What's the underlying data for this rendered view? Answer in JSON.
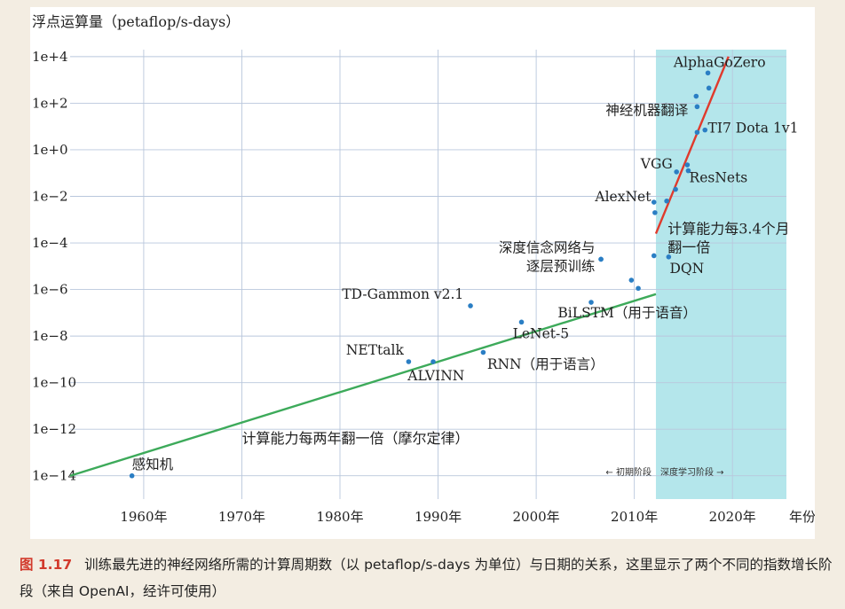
{
  "chart_data": {
    "type": "scatter",
    "ylabel": "浮点运算量（petaflop/s-days）",
    "xlabel": "年份",
    "y_scale": "log10",
    "ylim_exponent": [
      -15,
      4.3
    ],
    "xlim": [
      1952.5,
      2025.5
    ],
    "y_ticks": [
      {
        "exp": 4,
        "label": "1e+4"
      },
      {
        "exp": 2,
        "label": "1e+2"
      },
      {
        "exp": 0,
        "label": "1e+0"
      },
      {
        "exp": -2,
        "label": "1e−2"
      },
      {
        "exp": -4,
        "label": "1e−4"
      },
      {
        "exp": -6,
        "label": "1e−6"
      },
      {
        "exp": -8,
        "label": "1e−8"
      },
      {
        "exp": -10,
        "label": "1e−10"
      },
      {
        "exp": -12,
        "label": "1e−12"
      },
      {
        "exp": -14,
        "label": "1e−14"
      }
    ],
    "x_ticks": [
      {
        "year": 1960,
        "label": "1960年"
      },
      {
        "year": 1970,
        "label": "1970年"
      },
      {
        "year": 1980,
        "label": "1980年"
      },
      {
        "year": 1990,
        "label": "1990年"
      },
      {
        "year": 2000,
        "label": "2000年"
      },
      {
        "year": 2010,
        "label": "2010年"
      },
      {
        "year": 2020,
        "label": "2020年"
      }
    ],
    "grid": true,
    "deep_learning_era": {
      "start_year": 2012.2,
      "color": "#b4e6eb",
      "label_left": "← 初期阶段",
      "label_right": "深度学习阶段 →"
    },
    "trend_lines": [
      {
        "name": "moore",
        "color": "#3daa5a",
        "from": [
          1952.5,
          -14.0
        ],
        "to": [
          2012.2,
          -6.2
        ]
      },
      {
        "name": "ai",
        "color": "#e03a2c",
        "from": [
          2012.2,
          -3.6
        ],
        "to": [
          2019.6,
          4.0
        ]
      }
    ],
    "trend_labels": [
      {
        "text": "计算能力每两年翻一倍（摩尔定律）",
        "year": 1970.0,
        "exp": -12.6
      },
      {
        "text": "计算能力每3.4个月",
        "year": 2013.4,
        "exp": -3.6
      },
      {
        "text": "翻一倍",
        "year": 2013.4,
        "exp": -4.4
      }
    ],
    "points": [
      {
        "year": 1958.8,
        "exp": -14.0,
        "label": "感知机",
        "label_year": 1958.8,
        "label_exp": -13.7,
        "anchor": "start"
      },
      {
        "year": 1987.0,
        "exp": -9.1,
        "label": "NETtalk",
        "label_year": 1986.5,
        "label_exp": -8.8,
        "anchor": "end"
      },
      {
        "year": 1989.5,
        "exp": -9.1,
        "label": "ALVINN",
        "label_year": 1986.9,
        "label_exp": -9.9,
        "anchor": "start"
      },
      {
        "year": 1993.3,
        "exp": -6.7,
        "label": "TD-Gammon v2.1",
        "label_year": 1992.6,
        "label_exp": -6.4,
        "anchor": "end"
      },
      {
        "year": 1994.6,
        "exp": -8.7,
        "label": "RNN（用于语言）",
        "label_year": 1995.0,
        "label_exp": -9.4,
        "anchor": "start"
      },
      {
        "year": 1998.5,
        "exp": -7.4,
        "label": "LeNet-5",
        "label_year": 1997.6,
        "label_exp": -8.1,
        "anchor": "start"
      },
      {
        "year": 2005.6,
        "exp": -6.55,
        "label": "BiLSTM（用于语音）",
        "label_year": 2002.2,
        "label_exp": -7.2,
        "anchor": "start"
      },
      {
        "year": 2006.6,
        "exp": -4.7,
        "label": "深度信念网络与",
        "label_year": 2006.0,
        "label_exp": -4.4,
        "anchor": "end"
      },
      {
        "year": 2006.6,
        "exp": -4.7,
        "label": "逐层预训练",
        "label_year": 2006.0,
        "label_exp": -5.2,
        "anchor": "end"
      },
      {
        "year": 2009.7,
        "exp": -5.6,
        "label": "",
        "label_year": 0,
        "label_exp": 0,
        "anchor": "start"
      },
      {
        "year": 2010.4,
        "exp": -5.95,
        "label": "",
        "label_year": 0,
        "label_exp": 0,
        "anchor": "start"
      },
      {
        "year": 2012.0,
        "exp": -4.55,
        "label": "",
        "label_year": 0,
        "label_exp": 0,
        "anchor": "start"
      },
      {
        "year": 2013.5,
        "exp": -4.6,
        "label": "DQN",
        "label_year": 2013.6,
        "label_exp": -5.3,
        "anchor": "start"
      },
      {
        "year": 2012.0,
        "exp": -2.25,
        "label": "AlexNet",
        "label_year": 2011.7,
        "label_exp": -2.2,
        "anchor": "end"
      },
      {
        "year": 2012.1,
        "exp": -2.7,
        "label": "",
        "label_year": 0,
        "label_exp": 0,
        "anchor": "start"
      },
      {
        "year": 2013.3,
        "exp": -2.2,
        "label": "",
        "label_year": 0,
        "label_exp": 0,
        "anchor": "start"
      },
      {
        "year": 2014.2,
        "exp": -1.7,
        "label": "",
        "label_year": 0,
        "label_exp": 0,
        "anchor": "start"
      },
      {
        "year": 2014.3,
        "exp": -0.95,
        "label": "VGG",
        "label_year": 2013.9,
        "label_exp": -0.8,
        "anchor": "end"
      },
      {
        "year": 2015.4,
        "exp": -0.65,
        "label": "",
        "label_year": 0,
        "label_exp": 0,
        "anchor": "start"
      },
      {
        "year": 2015.5,
        "exp": -0.9,
        "label": "ResNets",
        "label_year": 2015.6,
        "label_exp": -1.4,
        "anchor": "start"
      },
      {
        "year": 2016.4,
        "exp": 0.75,
        "label": "",
        "label_year": 0,
        "label_exp": 0,
        "anchor": "start"
      },
      {
        "year": 2017.2,
        "exp": 0.85,
        "label": "TI7 Dota 1v1",
        "label_year": 2017.5,
        "label_exp": 0.75,
        "anchor": "start"
      },
      {
        "year": 2016.4,
        "exp": 1.85,
        "label": "神经机器翻译",
        "label_year": 2015.5,
        "label_exp": 1.5,
        "anchor": "end"
      },
      {
        "year": 2016.3,
        "exp": 2.3,
        "label": "",
        "label_year": 0,
        "label_exp": 0,
        "anchor": "start"
      },
      {
        "year": 2017.6,
        "exp": 2.65,
        "label": "",
        "label_year": 0,
        "label_exp": 0,
        "anchor": "start"
      },
      {
        "year": 2017.5,
        "exp": 3.3,
        "label": "AlphaGoZero",
        "label_year": 2014.0,
        "label_exp": 3.55,
        "anchor": "start"
      }
    ]
  },
  "caption": {
    "figure_number": "图 1.17",
    "text": "训练最先进的神经网络所需的计算周期数（以 petaflop/s-days 为单位）与日期的关系，这里显示了两个不同的指数增长阶段（来自 OpenAI，经许可使用）"
  }
}
